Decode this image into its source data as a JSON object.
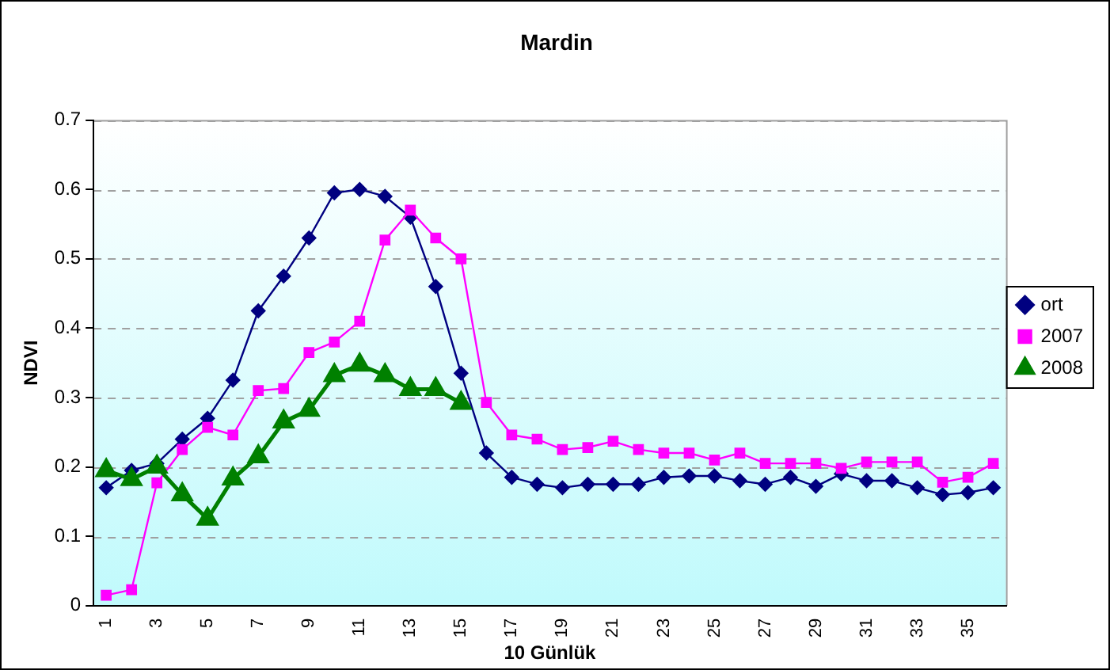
{
  "chart_data": {
    "type": "line",
    "title": "Mardin",
    "xlabel": "10 Günlük",
    "ylabel": "NDVI",
    "categories": [
      "1",
      null,
      "3",
      null,
      "5",
      null,
      "7",
      null,
      "9",
      null,
      "11",
      null,
      "13",
      null,
      "15",
      null,
      "17",
      null,
      "19",
      null,
      "21",
      null,
      "23",
      null,
      "25",
      null,
      "27",
      null,
      "29",
      null,
      "31",
      null,
      "33",
      null,
      "35",
      null
    ],
    "ylim": [
      0,
      0.7
    ],
    "yticks": [
      0,
      0.1,
      0.2,
      0.3,
      0.4,
      0.5,
      0.6,
      0.7
    ],
    "grid": "y",
    "legend": "right",
    "series": [
      {
        "name": "ort",
        "color": "#000080",
        "marker": "diamond",
        "values": [
          0.17,
          0.195,
          0.205,
          0.24,
          0.27,
          0.325,
          0.425,
          0.475,
          0.53,
          0.595,
          0.6,
          0.59,
          0.56,
          0.46,
          0.335,
          0.22,
          0.185,
          0.175,
          0.17,
          0.175,
          0.175,
          0.175,
          0.185,
          0.187,
          0.187,
          0.18,
          0.175,
          0.185,
          0.172,
          0.19,
          0.18,
          0.18,
          0.17,
          0.16,
          0.163,
          0.17
        ]
      },
      {
        "name": "2007",
        "color": "#ff00ff",
        "marker": "square",
        "values": [
          0.015,
          0.023,
          0.177,
          0.225,
          0.257,
          0.246,
          0.31,
          0.313,
          0.365,
          0.38,
          0.41,
          0.527,
          0.57,
          0.53,
          0.5,
          0.293,
          0.246,
          0.24,
          0.225,
          0.228,
          0.237,
          0.225,
          0.22,
          0.22,
          0.21,
          0.22,
          0.205,
          0.205,
          0.205,
          0.198,
          0.207,
          0.207,
          0.207,
          0.178,
          0.185,
          0.205
        ]
      },
      {
        "name": "2008",
        "color": "#008000",
        "marker": "triangle",
        "values": [
          0.195,
          0.182,
          0.2,
          0.16,
          0.125,
          0.183,
          0.215,
          0.265,
          0.282,
          0.332,
          0.347,
          0.332,
          0.312,
          0.312,
          0.292,
          null,
          null,
          null,
          null,
          null,
          null,
          null,
          null,
          null,
          null,
          null,
          null,
          null,
          null,
          null,
          null,
          null,
          null,
          null,
          null,
          null
        ]
      }
    ]
  }
}
